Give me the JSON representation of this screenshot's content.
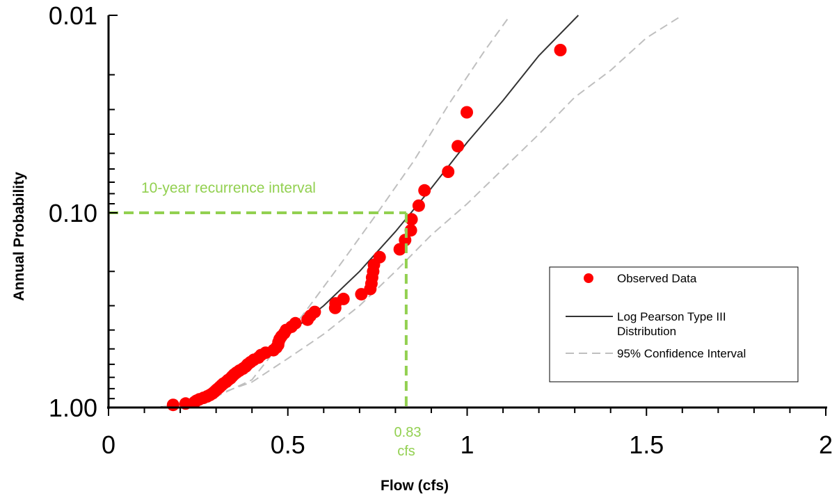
{
  "chart_data": {
    "type": "scatter",
    "xlabel": "Flow (cfs)",
    "ylabel": "Annual Probability",
    "xlim": [
      0,
      2
    ],
    "ylim": [
      1.0,
      0.01
    ],
    "yscale": "log-probability",
    "x_ticks": [
      0,
      0.5,
      1,
      1.5,
      2
    ],
    "x_tick_labels": [
      "0",
      "0.5",
      "1",
      "1.5",
      "2"
    ],
    "y_tick_labels": [
      {
        "value": 0.01,
        "label": "0.01"
      },
      {
        "value": 0.1,
        "label": "0.10"
      },
      {
        "value": 1.0,
        "label": "1.00"
      }
    ],
    "grid": false,
    "legend_position": "bottom-right",
    "legend": [
      {
        "label": "Observed Data",
        "style": "marker"
      },
      {
        "label": "Log Pearson Type III Distribution",
        "style": "solid-line"
      },
      {
        "label": "95% Confidence Interval",
        "style": "dashed-line"
      }
    ],
    "colors": {
      "observed": "#ff0000",
      "fit": "#333333",
      "confidence": "#bfbfbf",
      "annotation": "#92d050"
    },
    "series": [
      {
        "name": "Observed Data",
        "kind": "scatter",
        "points": [
          [
            1.26,
            0.015
          ],
          [
            0.999,
            0.031
          ],
          [
            0.974,
            0.046
          ],
          [
            0.947,
            0.062
          ],
          [
            0.881,
            0.077
          ],
          [
            0.865,
            0.092
          ],
          [
            0.845,
            0.108
          ],
          [
            0.843,
            0.123
          ],
          [
            0.827,
            0.138
          ],
          [
            0.812,
            0.154
          ],
          [
            0.756,
            0.169
          ],
          [
            0.74,
            0.185
          ],
          [
            0.738,
            0.2
          ],
          [
            0.735,
            0.215
          ],
          [
            0.733,
            0.231
          ],
          [
            0.73,
            0.246
          ],
          [
            0.705,
            0.262
          ],
          [
            0.655,
            0.277
          ],
          [
            0.633,
            0.292
          ],
          [
            0.632,
            0.308
          ],
          [
            0.575,
            0.323
          ],
          [
            0.563,
            0.338
          ],
          [
            0.555,
            0.354
          ],
          [
            0.521,
            0.369
          ],
          [
            0.51,
            0.385
          ],
          [
            0.495,
            0.4
          ],
          [
            0.49,
            0.415
          ],
          [
            0.482,
            0.431
          ],
          [
            0.477,
            0.446
          ],
          [
            0.474,
            0.462
          ],
          [
            0.473,
            0.477
          ],
          [
            0.468,
            0.492
          ],
          [
            0.46,
            0.508
          ],
          [
            0.438,
            0.523
          ],
          [
            0.425,
            0.538
          ],
          [
            0.418,
            0.554
          ],
          [
            0.405,
            0.569
          ],
          [
            0.396,
            0.585
          ],
          [
            0.388,
            0.6
          ],
          [
            0.383,
            0.615
          ],
          [
            0.375,
            0.631
          ],
          [
            0.365,
            0.646
          ],
          [
            0.357,
            0.662
          ],
          [
            0.35,
            0.677
          ],
          [
            0.345,
            0.692
          ],
          [
            0.34,
            0.708
          ],
          [
            0.333,
            0.723
          ],
          [
            0.328,
            0.738
          ],
          [
            0.32,
            0.754
          ],
          [
            0.315,
            0.769
          ],
          [
            0.31,
            0.785
          ],
          [
            0.305,
            0.8
          ],
          [
            0.3,
            0.815
          ],
          [
            0.295,
            0.831
          ],
          [
            0.29,
            0.846
          ],
          [
            0.283,
            0.862
          ],
          [
            0.275,
            0.877
          ],
          [
            0.265,
            0.892
          ],
          [
            0.253,
            0.908
          ],
          [
            0.245,
            0.923
          ],
          [
            0.24,
            0.938
          ],
          [
            0.215,
            0.954
          ],
          [
            0.18,
            0.969
          ]
        ]
      },
      {
        "name": "Log Pearson Type III Distribution",
        "kind": "line",
        "points": [
          [
            0.145,
            0.995
          ],
          [
            0.2,
            0.97
          ],
          [
            0.3,
            0.82
          ],
          [
            0.4,
            0.62
          ],
          [
            0.5,
            0.42
          ],
          [
            0.6,
            0.3
          ],
          [
            0.7,
            0.2
          ],
          [
            0.8,
            0.125
          ],
          [
            0.9,
            0.075
          ],
          [
            1.0,
            0.044
          ],
          [
            1.1,
            0.027
          ],
          [
            1.2,
            0.016
          ],
          [
            1.31,
            0.01
          ]
        ]
      },
      {
        "name": "95% Confidence Interval",
        "kind": "line",
        "points": [
          [
            0.15,
            0.995
          ],
          [
            0.25,
            0.95
          ],
          [
            0.3,
            0.88
          ],
          [
            0.4,
            0.72
          ],
          [
            0.45,
            0.55
          ],
          [
            0.55,
            0.32
          ],
          [
            0.65,
            0.18
          ],
          [
            0.75,
            0.1
          ],
          [
            0.85,
            0.055
          ],
          [
            0.95,
            0.028
          ],
          [
            1.05,
            0.015
          ],
          [
            1.12,
            0.01
          ]
        ]
      },
      {
        "name": "95% Confidence Interval",
        "kind": "line",
        "points": [
          [
            0.15,
            0.995
          ],
          [
            0.3,
            0.86
          ],
          [
            0.4,
            0.74
          ],
          [
            0.5,
            0.56
          ],
          [
            0.6,
            0.42
          ],
          [
            0.7,
            0.3
          ],
          [
            0.8,
            0.2
          ],
          [
            0.9,
            0.13
          ],
          [
            1.0,
            0.09
          ],
          [
            1.1,
            0.06
          ],
          [
            1.2,
            0.04
          ],
          [
            1.3,
            0.026
          ],
          [
            1.4,
            0.019
          ],
          [
            1.5,
            0.013
          ],
          [
            1.6,
            0.01
          ]
        ]
      }
    ],
    "annotations": {
      "recurrence_label": "10-year recurrence interval",
      "flow_value": "0.83",
      "flow_unit": "cfs",
      "marker_x": 0.83,
      "marker_y": 0.1
    }
  }
}
